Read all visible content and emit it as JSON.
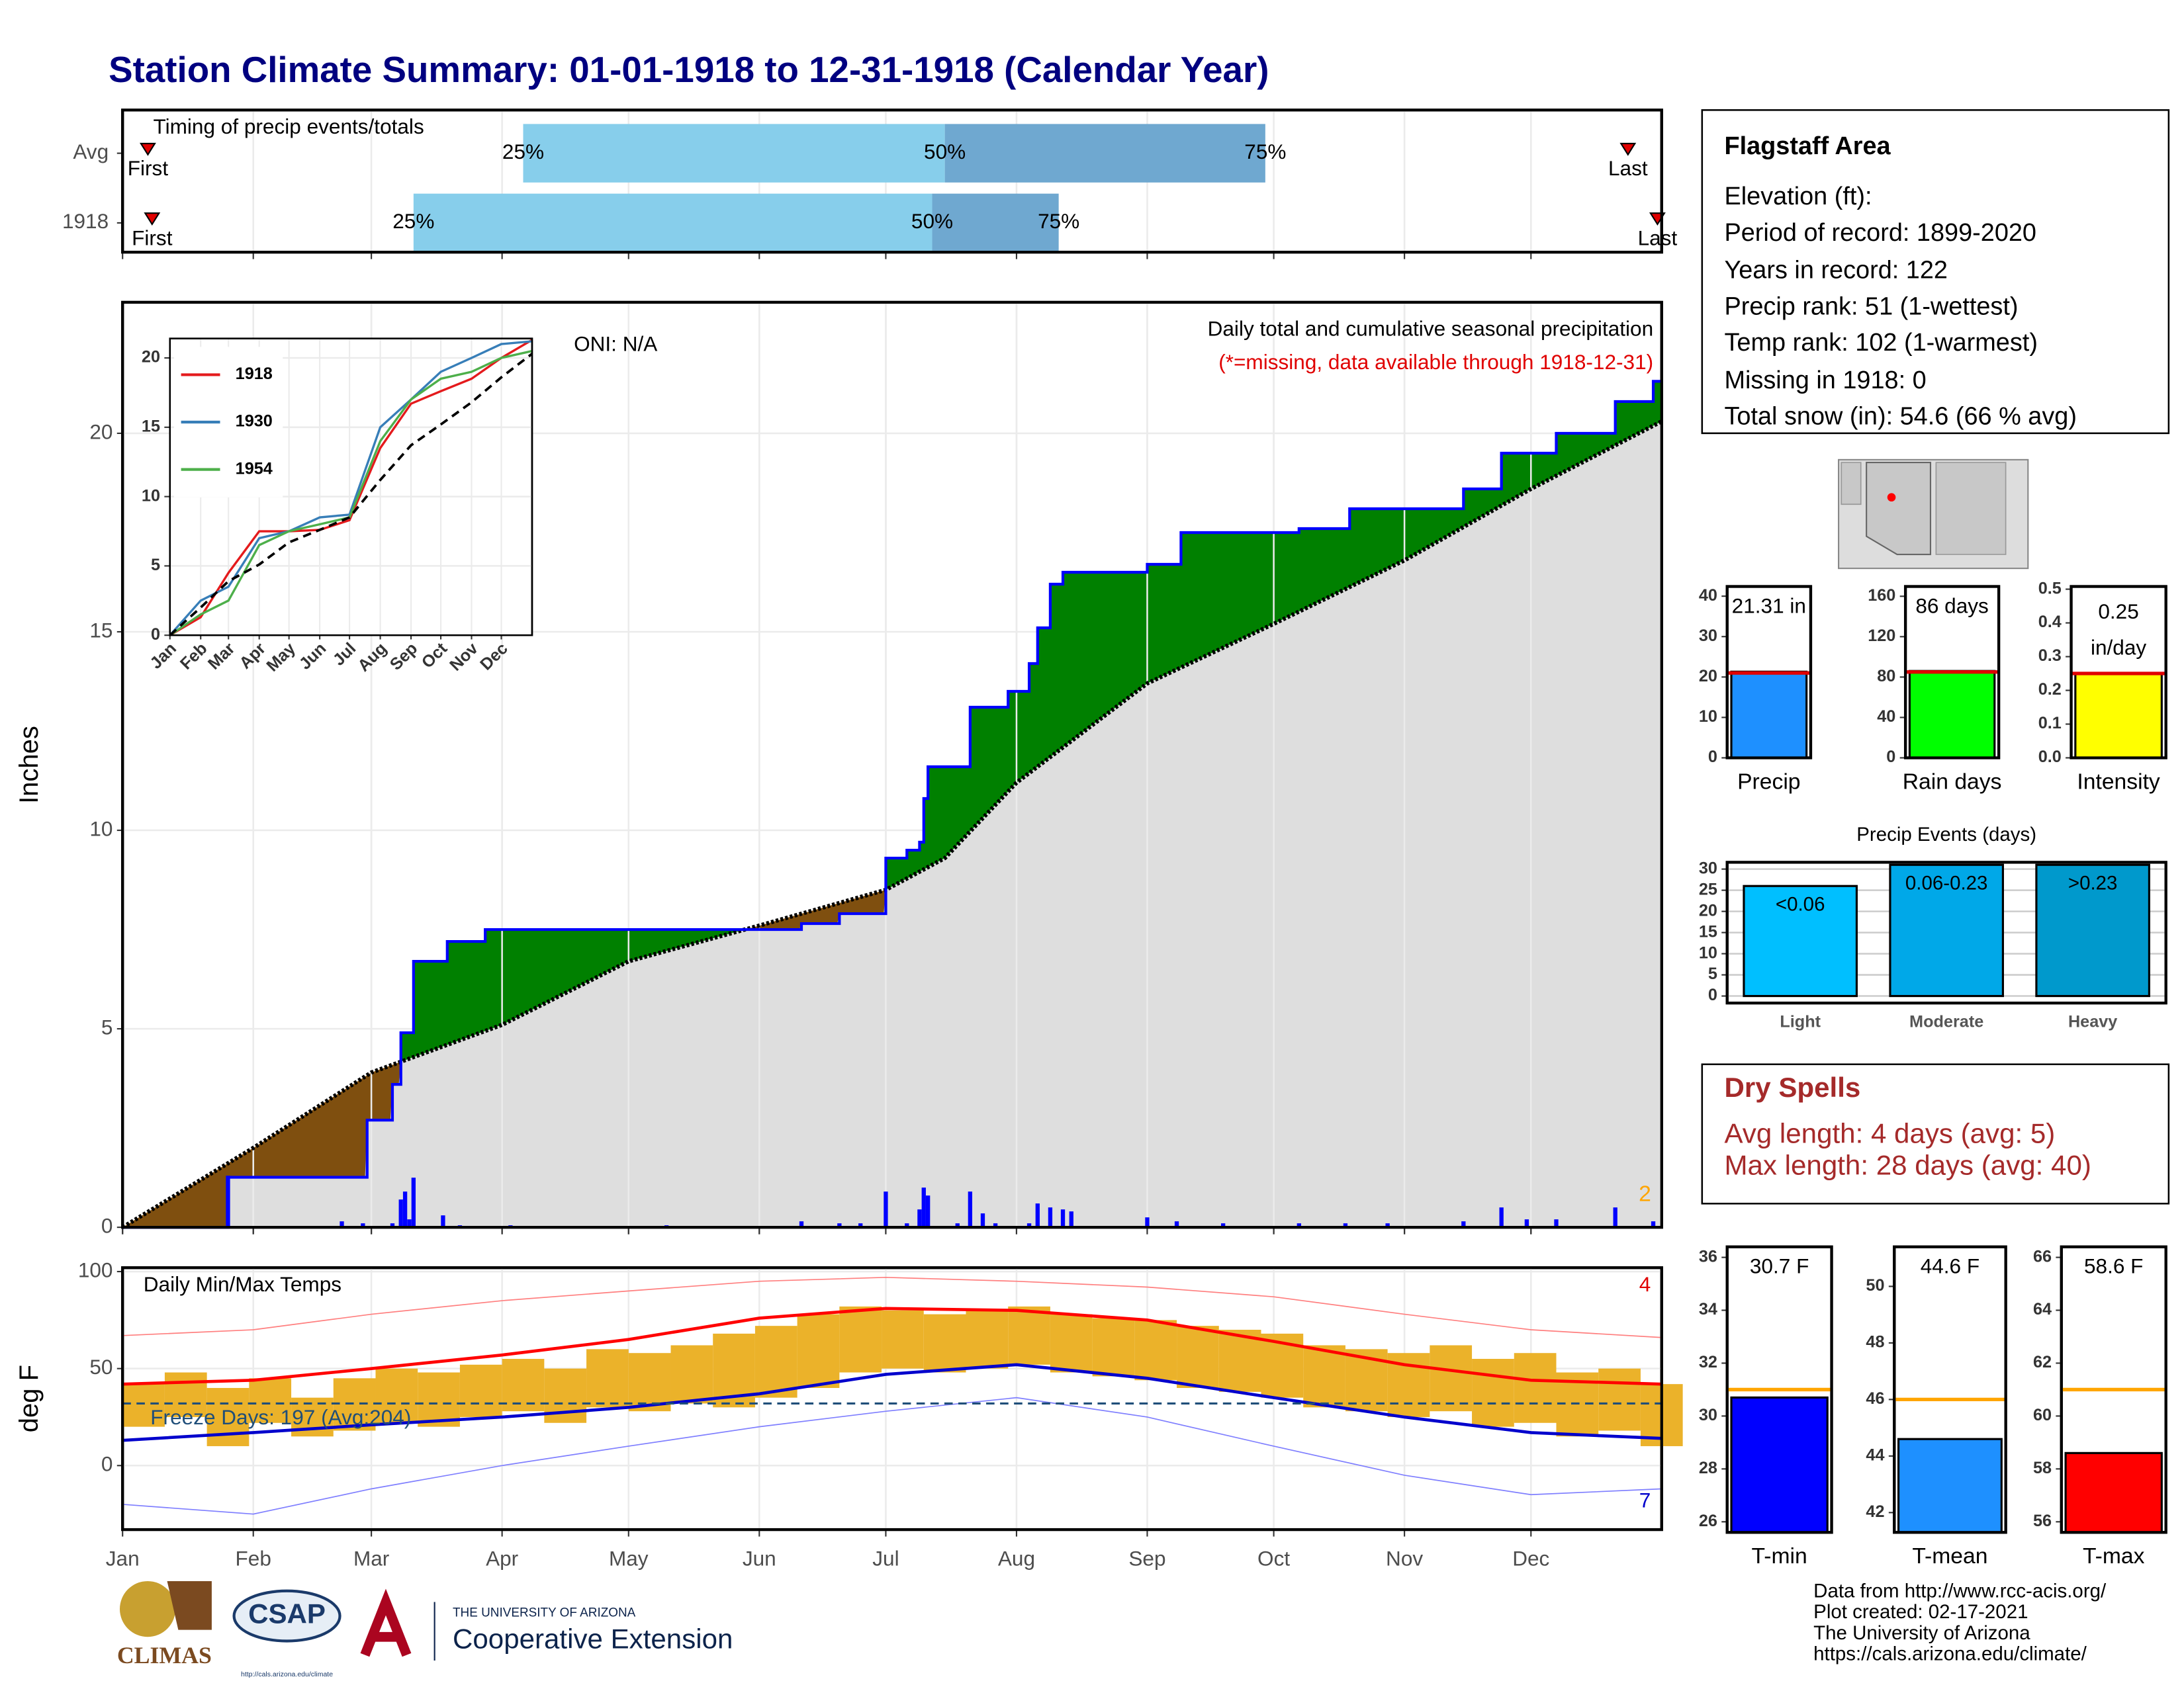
{
  "title": "Station Climate Summary: 01-01-1918 to 12-31-1918 (Calendar Year)",
  "info": {
    "title": "Flagstaff Area",
    "lines": [
      "Elevation (ft):",
      "Period of record: 1899-2020",
      "Years in record: 122",
      "Precip rank: 51 (1-wettest)",
      "Temp rank: 102 (1-warmest)",
      "Missing in 1918: 0",
      "Total snow (in): 54.6 (66 % avg)"
    ]
  },
  "dry_spells": {
    "title": "Dry Spells",
    "lines": [
      "Avg length: 4 days (avg: 5)",
      "Max length: 28 days (avg: 40)"
    ]
  },
  "footer": [
    "Data from http://www.rcc-acis.org/",
    "Plot created: 02-17-2021",
    "The University of Arizona",
    "https://cals.arizona.edu/climate/"
  ],
  "logos": {
    "climas": "CLIMAS",
    "csap": "CSAP",
    "csap_url": "http://cals.arizona.edu/climate",
    "university": "THE UNIVERSITY OF ARIZONA",
    "extension": "Cooperative Extension"
  },
  "chart_data": [
    {
      "type": "timing",
      "title": "Timing of precip events/totals",
      "categories": [
        "Avg",
        "1918"
      ],
      "xlim": [
        0,
        365
      ],
      "series": [
        {
          "name": "First",
          "color": "#e00000",
          "values": [
            6,
            7
          ]
        },
        {
          "name": "25%",
          "color": "#87ceeb",
          "values": [
            95,
            69
          ]
        },
        {
          "name": "50%",
          "color": "#6fa8d0",
          "values": [
            195,
            192
          ]
        },
        {
          "name": "75%",
          "color": "#6fa8d0",
          "values": [
            271,
            222
          ]
        },
        {
          "name": "Last",
          "color": "#e00000",
          "values": [
            357,
            364
          ]
        }
      ]
    },
    {
      "type": "cumulative-area",
      "ylabel": "Inches",
      "xlim": [
        0,
        365
      ],
      "ylim": [
        0,
        23.3
      ],
      "yticks": [
        0,
        5,
        10,
        15,
        20
      ],
      "annotations": {
        "oni": "ONI: N/A",
        "subtitle": "Daily total and cumulative seasonal precipitation",
        "note": "(*=missing, data available through 1918-12-31)",
        "count": "2"
      },
      "colors": {
        "above": "#008000",
        "below": "#7f4f0f",
        "base": "#dedede"
      },
      "observed": {
        "color": "#0000ff",
        "x": [
          0,
          25,
          58,
          64,
          66,
          69,
          77,
          86,
          161,
          170,
          181,
          186,
          189,
          190,
          191,
          201,
          210,
          215,
          217,
          220,
          223,
          243,
          251,
          279,
          291,
          318,
          327,
          340,
          354,
          363
        ],
        "values": [
          0,
          1.26,
          2.7,
          3.6,
          4.9,
          6.7,
          7.2,
          7.5,
          7.65,
          7.9,
          9.3,
          9.5,
          9.7,
          10.8,
          11.6,
          13.1,
          13.5,
          14.2,
          15.1,
          16.2,
          16.5,
          16.7,
          17.5,
          17.6,
          18.1,
          18.6,
          19.5,
          20.0,
          20.8,
          21.31
        ]
      },
      "average": {
        "color": "#000000",
        "x": [
          0,
          31,
          59,
          90,
          120,
          151,
          181,
          195,
          212,
          243,
          273,
          304,
          334,
          365
        ],
        "values": [
          0,
          2.0,
          3.9,
          5.1,
          6.7,
          7.6,
          8.5,
          9.3,
          11.2,
          13.7,
          15.2,
          16.8,
          18.6,
          20.3
        ]
      },
      "daily": {
        "color": "#0000ff",
        "x": [
          25,
          52,
          57,
          64,
          66,
          67,
          68,
          69,
          76,
          80,
          92,
          129,
          161,
          170,
          175,
          181,
          186,
          189,
          190,
          191,
          198,
          201,
          204,
          207,
          215,
          217,
          220,
          223,
          225,
          243,
          250,
          261,
          279,
          290,
          300,
          318,
          327,
          333,
          340,
          354,
          363
        ],
        "values": [
          1.3,
          0.15,
          0.1,
          0.1,
          0.7,
          0.9,
          0.2,
          1.25,
          0.3,
          0.05,
          0.05,
          0.05,
          0.15,
          0.1,
          0.1,
          0.9,
          0.1,
          0.45,
          1.0,
          0.8,
          0.1,
          0.9,
          0.35,
          0.1,
          0.1,
          0.6,
          0.5,
          0.45,
          0.4,
          0.25,
          0.15,
          0.1,
          0.1,
          0.1,
          0.1,
          0.15,
          0.5,
          0.2,
          0.2,
          0.5,
          0.15
        ]
      }
    },
    {
      "type": "line",
      "xlim": [
        0,
        365
      ],
      "ylim": [
        0,
        21.4
      ],
      "yticks": [
        0,
        5,
        10,
        15,
        20
      ],
      "xticks": [
        {
          "value": 0,
          "label": "Jan"
        },
        {
          "value": 31,
          "label": "Feb"
        },
        {
          "value": 59,
          "label": "Mar"
        },
        {
          "value": 90,
          "label": "Apr"
        },
        {
          "value": 120,
          "label": "May"
        },
        {
          "value": 151,
          "label": "Jun"
        },
        {
          "value": 181,
          "label": "Jul"
        },
        {
          "value": 212,
          "label": "Aug"
        },
        {
          "value": 243,
          "label": "Sep"
        },
        {
          "value": 273,
          "label": "Oct"
        },
        {
          "value": 304,
          "label": "Nov"
        },
        {
          "value": 334,
          "label": "Dec"
        }
      ],
      "x": [
        0,
        31,
        59,
        90,
        120,
        151,
        181,
        212,
        243,
        273,
        304,
        334,
        365
      ],
      "series": [
        {
          "name": "1918",
          "color": "#e41a1c",
          "values": [
            0,
            1.3,
            4.5,
            7.5,
            7.5,
            7.6,
            8.3,
            13.5,
            16.7,
            17.6,
            18.5,
            20,
            21.3
          ]
        },
        {
          "name": "1930",
          "color": "#377eb8",
          "values": [
            0,
            2.5,
            3.5,
            7,
            7.5,
            8.5,
            8.7,
            15,
            17,
            19,
            20,
            21,
            21.2
          ]
        },
        {
          "name": "1954",
          "color": "#4daf4a",
          "values": [
            0,
            1.5,
            2.5,
            6.5,
            7.5,
            8,
            8.5,
            14,
            17,
            18.5,
            19,
            20,
            20.5
          ]
        }
      ],
      "average": {
        "color": "#000000",
        "values": [
          0,
          2.0,
          3.9,
          5.1,
          6.7,
          7.6,
          8.5,
          11.2,
          13.7,
          15.2,
          16.8,
          18.6,
          20.3
        ]
      }
    },
    {
      "type": "temperature",
      "title": "Daily Min/Max Temps",
      "ylabel": "deg F",
      "xlim": [
        0,
        365
      ],
      "ylim": [
        -33,
        102
      ],
      "yticks": [
        0,
        50,
        100
      ],
      "xticks": [
        {
          "value": 0,
          "label": "Jan"
        },
        {
          "value": 31,
          "label": "Feb"
        },
        {
          "value": 59,
          "label": "Mar"
        },
        {
          "value": 90,
          "label": "Apr"
        },
        {
          "value": 120,
          "label": "May"
        },
        {
          "value": 151,
          "label": "Jun"
        },
        {
          "value": 181,
          "label": "Jul"
        },
        {
          "value": 212,
          "label": "Aug"
        },
        {
          "value": 243,
          "label": "Sep"
        },
        {
          "value": 273,
          "label": "Oct"
        },
        {
          "value": 304,
          "label": "Nov"
        },
        {
          "value": 334,
          "label": "Dec"
        }
      ],
      "freeze": {
        "value": 32,
        "label": "Freeze Days: 197 (Avg:204)",
        "color": "#1f4e79"
      },
      "annotations": {
        "max_count": "4",
        "min_count": "7"
      },
      "observed": {
        "color": "#ebb22a",
        "x": [
          0,
          10,
          20,
          30,
          40,
          50,
          60,
          70,
          80,
          90,
          100,
          110,
          120,
          130,
          140,
          150,
          160,
          170,
          180,
          190,
          200,
          210,
          220,
          230,
          240,
          250,
          260,
          270,
          280,
          290,
          300,
          310,
          320,
          330,
          340,
          350,
          360
        ],
        "max": [
          42,
          48,
          40,
          45,
          35,
          45,
          50,
          48,
          52,
          55,
          50,
          60,
          58,
          62,
          68,
          72,
          78,
          82,
          80,
          78,
          80,
          82,
          78,
          76,
          75,
          72,
          70,
          68,
          62,
          60,
          58,
          62,
          55,
          58,
          48,
          50,
          42
        ],
        "min": [
          20,
          25,
          10,
          22,
          15,
          18,
          22,
          20,
          25,
          28,
          22,
          30,
          28,
          32,
          30,
          35,
          40,
          48,
          50,
          48,
          50,
          52,
          48,
          46,
          44,
          40,
          38,
          35,
          30,
          28,
          25,
          28,
          20,
          22,
          15,
          18,
          10
        ]
      },
      "x": [
        0,
        31,
        59,
        90,
        120,
        151,
        181,
        212,
        243,
        273,
        304,
        334,
        365
      ],
      "normal_max": {
        "color": "#ff0000",
        "values": [
          42,
          44,
          50,
          57,
          65,
          76,
          81,
          80,
          75,
          64,
          52,
          44,
          42
        ]
      },
      "normal_min": {
        "color": "#0000cc",
        "values": [
          13,
          17,
          21,
          25,
          30,
          37,
          47,
          52,
          45,
          35,
          25,
          17,
          14
        ]
      },
      "record_max": {
        "color": "#ff7f7f",
        "values": [
          67,
          70,
          78,
          85,
          90,
          95,
          97,
          95,
          92,
          87,
          78,
          70,
          66
        ]
      },
      "record_min": {
        "color": "#7f7fff",
        "values": [
          -20,
          -25,
          -12,
          0,
          10,
          20,
          28,
          35,
          25,
          10,
          -5,
          -15,
          -12
        ]
      }
    },
    {
      "type": "bar",
      "categories": [
        "Precip"
      ],
      "values": [
        21.31
      ],
      "value_labels": [
        "21.31 in"
      ],
      "avg": 21,
      "avg_color": "#e00000",
      "color": "#1e90ff",
      "ylim": [
        0,
        42.4
      ],
      "yticks": [
        0,
        10,
        20,
        30,
        40
      ]
    },
    {
      "type": "bar",
      "categories": [
        "Rain days"
      ],
      "values": [
        86
      ],
      "value_labels": [
        "86 days"
      ],
      "avg": 85,
      "avg_color": "#e00000",
      "color": "#00ff00",
      "ylim": [
        0,
        169.7
      ],
      "yticks": [
        0,
        40,
        80,
        120,
        160
      ]
    },
    {
      "type": "bar",
      "categories": [
        "Intensity"
      ],
      "values": [
        0.25
      ],
      "value_labels": [
        "0.25"
      ],
      "unit": "in/day",
      "avg": 0.25,
      "avg_color": "#e00000",
      "color": "#ffff00",
      "ylim": [
        0,
        0.508
      ],
      "yticks": [
        {
          "value": 0,
          "label": "0.0"
        },
        {
          "value": 0.1,
          "label": "0.1"
        },
        {
          "value": 0.2,
          "label": "0.2"
        },
        {
          "value": 0.3,
          "label": "0.3"
        },
        {
          "value": 0.4,
          "label": "0.4"
        },
        {
          "value": 0.5,
          "label": "0.5"
        }
      ]
    },
    {
      "type": "bar",
      "title": "Precip Events (days)",
      "categories": [
        "Light",
        "Moderate",
        "Heavy"
      ],
      "values": [
        26,
        31,
        31
      ],
      "class_labels": [
        "<0.06",
        "0.06-0.23",
        ">0.23"
      ],
      "colors": [
        "#00bfff",
        "#00a8e8",
        "#0099cc"
      ],
      "ylim": [
        -1.65,
        31.6
      ],
      "yticks": [
        0,
        5,
        10,
        15,
        20,
        25,
        30
      ],
      "grid": true
    },
    {
      "type": "bar",
      "categories": [
        "T-min"
      ],
      "values": [
        30.7
      ],
      "value_labels": [
        "30.7 F"
      ],
      "avg": 31,
      "avg_color": "#ffa500",
      "color": "#0000ff",
      "ylim": [
        25.6,
        36.4
      ],
      "yticks": [
        26,
        28,
        30,
        32,
        34,
        36
      ]
    },
    {
      "type": "bar",
      "categories": [
        "T-mean"
      ],
      "values": [
        44.6
      ],
      "value_labels": [
        "44.6 F"
      ],
      "avg": 46,
      "avg_color": "#ffa500",
      "color": "#1e90ff",
      "ylim": [
        41.3,
        51.4
      ],
      "yticks": [
        42,
        44,
        46,
        48,
        50
      ]
    },
    {
      "type": "bar",
      "categories": [
        "T-max"
      ],
      "values": [
        58.6
      ],
      "value_labels": [
        "58.6 F"
      ],
      "avg": 61,
      "avg_color": "#ffa500",
      "color": "#ff0000",
      "ylim": [
        55.6,
        66.4
      ],
      "yticks": [
        56,
        58,
        60,
        62,
        64,
        66
      ]
    }
  ]
}
